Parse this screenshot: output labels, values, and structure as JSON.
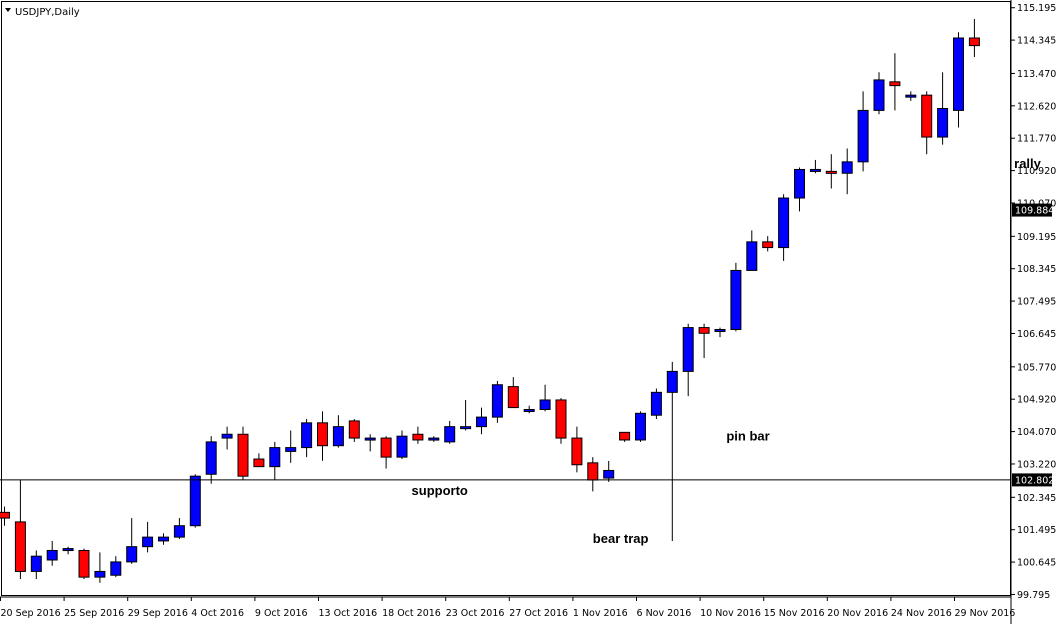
{
  "chart_data": {
    "type": "candlestick",
    "symbol_label": "USDJPY,Daily",
    "y_range": [
      99.65,
      115.24
    ],
    "y_tick_labels": [
      "115.195",
      "114.345",
      "113.470",
      "112.620",
      "111.770",
      "110.920",
      "110.070",
      "109.195",
      "108.345",
      "107.495",
      "106.645",
      "105.770",
      "104.920",
      "104.070",
      "103.220",
      "102.345",
      "101.495",
      "100.645",
      "99.795"
    ],
    "current_price_label": "109.884",
    "support_price_label": "102.802",
    "support_level": 102.802,
    "x_tick_labels": [
      {
        "label": "20 Sep 2016",
        "index": 0
      },
      {
        "label": "25 Sep 2016",
        "index": 4
      },
      {
        "label": "29 Sep 2016",
        "index": 8
      },
      {
        "label": "4 Oct 2016",
        "index": 12
      },
      {
        "label": "9 Oct 2016",
        "index": 16
      },
      {
        "label": "13 Oct 2016",
        "index": 20
      },
      {
        "label": "18 Oct 2016",
        "index": 24
      },
      {
        "label": "23 Oct 2016",
        "index": 28
      },
      {
        "label": "27 Oct 2016",
        "index": 32
      },
      {
        "label": "1 Nov 2016",
        "index": 36
      },
      {
        "label": "6 Nov 2016",
        "index": 40
      },
      {
        "label": "10 Nov 2016",
        "index": 44
      },
      {
        "label": "15 Nov 2016",
        "index": 48
      },
      {
        "label": "20 Nov 2016",
        "index": 52
      },
      {
        "label": "24 Nov 2016",
        "index": 56
      },
      {
        "label": "29 Nov 2016",
        "index": 60
      }
    ],
    "candles": [
      {
        "o": 101.95,
        "h": 102.1,
        "l": 101.6,
        "c": 101.8
      },
      {
        "o": 101.7,
        "h": 102.8,
        "l": 100.2,
        "c": 100.4
      },
      {
        "o": 100.4,
        "h": 100.95,
        "l": 100.2,
        "c": 100.8
      },
      {
        "o": 100.7,
        "h": 101.2,
        "l": 100.55,
        "c": 100.95
      },
      {
        "o": 100.95,
        "h": 101.05,
        "l": 100.85,
        "c": 101.0
      },
      {
        "o": 100.95,
        "h": 101.0,
        "l": 100.2,
        "c": 100.25
      },
      {
        "o": 100.25,
        "h": 100.9,
        "l": 100.1,
        "c": 100.4
      },
      {
        "o": 100.3,
        "h": 100.8,
        "l": 100.25,
        "c": 100.65
      },
      {
        "o": 100.65,
        "h": 101.8,
        "l": 100.6,
        "c": 101.05
      },
      {
        "o": 101.05,
        "h": 101.7,
        "l": 100.9,
        "c": 101.3
      },
      {
        "o": 101.2,
        "h": 101.4,
        "l": 101.1,
        "c": 101.3
      },
      {
        "o": 101.3,
        "h": 101.8,
        "l": 101.25,
        "c": 101.6
      },
      {
        "o": 101.6,
        "h": 102.95,
        "l": 101.55,
        "c": 102.9
      },
      {
        "o": 102.95,
        "h": 103.95,
        "l": 102.7,
        "c": 103.8
      },
      {
        "o": 103.9,
        "h": 104.2,
        "l": 103.6,
        "c": 104.0
      },
      {
        "o": 104.0,
        "h": 104.2,
        "l": 102.8,
        "c": 102.9
      },
      {
        "o": 103.35,
        "h": 103.5,
        "l": 103.15,
        "c": 103.15
      },
      {
        "o": 103.15,
        "h": 103.8,
        "l": 102.8,
        "c": 103.65
      },
      {
        "o": 103.55,
        "h": 104.1,
        "l": 103.25,
        "c": 103.65
      },
      {
        "o": 103.65,
        "h": 104.4,
        "l": 103.4,
        "c": 104.3
      },
      {
        "o": 104.3,
        "h": 104.6,
        "l": 103.3,
        "c": 103.7
      },
      {
        "o": 103.7,
        "h": 104.5,
        "l": 103.65,
        "c": 104.2
      },
      {
        "o": 104.35,
        "h": 104.4,
        "l": 103.8,
        "c": 103.9
      },
      {
        "o": 103.85,
        "h": 104.0,
        "l": 103.55,
        "c": 103.9
      },
      {
        "o": 103.9,
        "h": 103.95,
        "l": 103.1,
        "c": 103.4
      },
      {
        "o": 103.4,
        "h": 104.1,
        "l": 103.35,
        "c": 103.95
      },
      {
        "o": 104.0,
        "h": 104.2,
        "l": 103.75,
        "c": 103.85
      },
      {
        "o": 103.85,
        "h": 103.95,
        "l": 103.8,
        "c": 103.9
      },
      {
        "o": 103.8,
        "h": 104.35,
        "l": 103.75,
        "c": 104.2
      },
      {
        "o": 104.15,
        "h": 104.9,
        "l": 104.1,
        "c": 104.2
      },
      {
        "o": 104.2,
        "h": 104.7,
        "l": 104.0,
        "c": 104.45
      },
      {
        "o": 104.45,
        "h": 105.4,
        "l": 104.3,
        "c": 105.3
      },
      {
        "o": 105.25,
        "h": 105.5,
        "l": 104.7,
        "c": 104.7
      },
      {
        "o": 104.6,
        "h": 104.75,
        "l": 104.55,
        "c": 104.65
      },
      {
        "o": 104.65,
        "h": 105.3,
        "l": 104.6,
        "c": 104.9
      },
      {
        "o": 104.9,
        "h": 104.95,
        "l": 103.75,
        "c": 103.9
      },
      {
        "o": 103.9,
        "h": 104.2,
        "l": 103.0,
        "c": 103.2
      },
      {
        "o": 103.25,
        "h": 103.4,
        "l": 102.5,
        "c": 102.8
      },
      {
        "o": 102.85,
        "h": 103.3,
        "l": 102.75,
        "c": 103.05
      },
      {
        "o": 104.05,
        "h": 104.05,
        "l": 103.8,
        "c": 103.85
      },
      {
        "o": 103.85,
        "h": 104.6,
        "l": 103.8,
        "c": 104.55
      },
      {
        "o": 104.5,
        "h": 105.2,
        "l": 104.4,
        "c": 105.1
      },
      {
        "o": 105.1,
        "h": 105.9,
        "l": 101.2,
        "c": 105.65
      },
      {
        "o": 105.65,
        "h": 106.9,
        "l": 105.0,
        "c": 106.8
      },
      {
        "o": 106.8,
        "h": 106.9,
        "l": 106.0,
        "c": 106.65
      },
      {
        "o": 106.7,
        "h": 106.8,
        "l": 106.55,
        "c": 106.75
      },
      {
        "o": 106.75,
        "h": 108.5,
        "l": 106.7,
        "c": 108.3
      },
      {
        "o": 108.3,
        "h": 109.35,
        "l": 108.3,
        "c": 109.05
      },
      {
        "o": 109.05,
        "h": 109.2,
        "l": 108.8,
        "c": 108.9
      },
      {
        "o": 108.9,
        "h": 110.3,
        "l": 108.55,
        "c": 110.2
      },
      {
        "o": 110.2,
        "h": 111.0,
        "l": 109.85,
        "c": 110.95
      },
      {
        "o": 110.95,
        "h": 111.2,
        "l": 110.85,
        "c": 110.95
      },
      {
        "o": 110.9,
        "h": 111.35,
        "l": 110.45,
        "c": 110.85
      },
      {
        "o": 110.85,
        "h": 111.5,
        "l": 110.3,
        "c": 111.15
      },
      {
        "o": 111.15,
        "h": 113.0,
        "l": 110.9,
        "c": 112.5
      },
      {
        "o": 112.5,
        "h": 113.5,
        "l": 112.4,
        "c": 113.3
      },
      {
        "o": 113.25,
        "h": 114.0,
        "l": 112.5,
        "c": 113.15
      },
      {
        "o": 112.85,
        "h": 113.0,
        "l": 112.75,
        "c": 112.9
      },
      {
        "o": 112.9,
        "h": 113.0,
        "l": 111.35,
        "c": 111.8
      },
      {
        "o": 111.8,
        "h": 113.5,
        "l": 111.6,
        "c": 112.55
      },
      {
        "o": 112.5,
        "h": 114.55,
        "l": 112.05,
        "c": 114.4
      },
      {
        "o": 114.4,
        "h": 114.9,
        "l": 113.9,
        "c": 114.2
      }
    ],
    "annotations": [
      {
        "text": "rally",
        "x": 63.5,
        "y": 110.99
      },
      {
        "text": "pin bar",
        "x": 45.4,
        "y": 103.84
      },
      {
        "text": "supporto",
        "x": 25.6,
        "y": 102.41
      },
      {
        "text": "bear trap",
        "x": 37.0,
        "y": 101.15
      }
    ],
    "colors": {
      "bull": "#0000ff",
      "bear": "#ff0000",
      "outline": "#000000",
      "background": "#ffffff"
    },
    "grid": false
  }
}
